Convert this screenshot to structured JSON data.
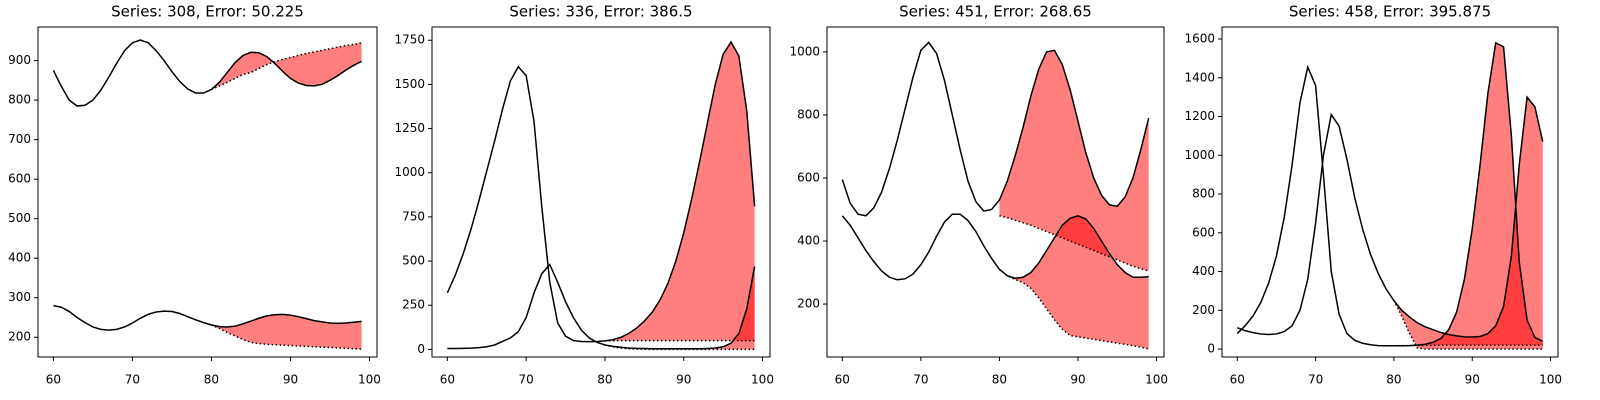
{
  "chart_data": [
    {
      "type": "line",
      "title": "Series: 308, Error: 50.225",
      "x": [
        60,
        61,
        62,
        63,
        64,
        65,
        66,
        67,
        68,
        69,
        70,
        71,
        72,
        73,
        74,
        75,
        76,
        77,
        78,
        79,
        80,
        81,
        82,
        83,
        84,
        85,
        86,
        87,
        88,
        89,
        90,
        91,
        92,
        93,
        94,
        95,
        96,
        97,
        98,
        99
      ],
      "xlim": [
        58.05,
        100.95
      ],
      "xticks": [
        60,
        70,
        80,
        90,
        100
      ],
      "ylim": [
        150,
        985
      ],
      "yticks": [
        200,
        300,
        400,
        500,
        600,
        700,
        800,
        900
      ],
      "fill_color": "#ff0000",
      "series": [
        {
          "color": "#000000",
          "linestyle": "solid",
          "values": [
            875,
            835,
            800,
            785,
            787,
            800,
            825,
            858,
            893,
            925,
            945,
            952,
            945,
            925,
            900,
            872,
            847,
            828,
            818,
            818,
            827,
            845,
            870,
            895,
            913,
            921,
            920,
            910,
            893,
            873,
            855,
            843,
            837,
            836,
            840,
            850,
            862,
            876,
            888,
            898
          ]
        },
        {
          "color": "#000000",
          "linestyle": "solid",
          "values": [
            280,
            276,
            265,
            250,
            237,
            226,
            220,
            218,
            220,
            226,
            236,
            248,
            258,
            264,
            266,
            265,
            260,
            252,
            244,
            237,
            231,
            227,
            226,
            228,
            234,
            241,
            248,
            254,
            257,
            258,
            256,
            252,
            247,
            242,
            239,
            236,
            235,
            236,
            238,
            240
          ]
        },
        {
          "color": "#000000",
          "linestyle": "dotted",
          "values": [
            null,
            null,
            null,
            null,
            null,
            null,
            null,
            null,
            null,
            null,
            null,
            null,
            null,
            null,
            null,
            null,
            null,
            null,
            null,
            null,
            827,
            836,
            845,
            855,
            865,
            870,
            880,
            890,
            897,
            903,
            908,
            913,
            918,
            922,
            926,
            930,
            934,
            938,
            941,
            945
          ]
        },
        {
          "color": "#000000",
          "linestyle": "dotted",
          "values": [
            null,
            null,
            null,
            null,
            null,
            null,
            null,
            null,
            null,
            null,
            null,
            null,
            null,
            null,
            null,
            null,
            null,
            null,
            null,
            null,
            231,
            222,
            212,
            203,
            194,
            187,
            184,
            182,
            181,
            180,
            179,
            178,
            177,
            176,
            175,
            174,
            173,
            172,
            171,
            170
          ]
        }
      ]
    },
    {
      "type": "line",
      "title": "Series: 336, Error: 386.5",
      "x": [
        60,
        61,
        62,
        63,
        64,
        65,
        66,
        67,
        68,
        69,
        70,
        71,
        72,
        73,
        74,
        75,
        76,
        77,
        78,
        79,
        80,
        81,
        82,
        83,
        84,
        85,
        86,
        87,
        88,
        89,
        90,
        91,
        92,
        93,
        94,
        95,
        96,
        97,
        98,
        99
      ],
      "xlim": [
        58.05,
        100.95
      ],
      "xticks": [
        60,
        70,
        80,
        90,
        100
      ],
      "ylim": [
        -43,
        1825
      ],
      "yticks": [
        0,
        250,
        500,
        750,
        1000,
        1250,
        1500,
        1750
      ],
      "fill_color": "#ff0000",
      "series": [
        {
          "color": "#000000",
          "linestyle": "solid",
          "values": [
            320,
            420,
            540,
            680,
            840,
            1010,
            1180,
            1360,
            1520,
            1600,
            1550,
            1290,
            800,
            380,
            150,
            75,
            50,
            45,
            44,
            45,
            48,
            55,
            68,
            90,
            120,
            160,
            210,
            280,
            375,
            500,
            660,
            850,
            1060,
            1280,
            1500,
            1670,
            1740,
            1660,
            1350,
            810
          ]
        },
        {
          "color": "#000000",
          "linestyle": "solid",
          "values": [
            5,
            5,
            6,
            7,
            10,
            15,
            25,
            45,
            65,
            100,
            180,
            320,
            430,
            480,
            380,
            270,
            180,
            110,
            65,
            40,
            25,
            17,
            12,
            8,
            6,
            5,
            4,
            4,
            4,
            4,
            4,
            4,
            4,
            5,
            8,
            15,
            35,
            90,
            230,
            470
          ]
        },
        {
          "color": "#000000",
          "linestyle": "dotted",
          "values": [
            null,
            null,
            null,
            null,
            null,
            null,
            null,
            null,
            null,
            null,
            null,
            null,
            null,
            null,
            null,
            null,
            null,
            null,
            null,
            null,
            48,
            49,
            50,
            50,
            50,
            50,
            50,
            50,
            50,
            50,
            50,
            50,
            50,
            50,
            50,
            50,
            50,
            50,
            50,
            50
          ]
        },
        {
          "color": "#000000",
          "linestyle": "dotted",
          "values": [
            null,
            null,
            null,
            null,
            null,
            null,
            null,
            null,
            null,
            null,
            null,
            null,
            null,
            null,
            null,
            null,
            null,
            null,
            null,
            null,
            25,
            15,
            8,
            4,
            2,
            1,
            0,
            0,
            0,
            0,
            0,
            0,
            0,
            0,
            0,
            0,
            0,
            0,
            0,
            0
          ]
        }
      ]
    },
    {
      "type": "line",
      "title": "Series: 451, Error: 268.65",
      "x": [
        60,
        61,
        62,
        63,
        64,
        65,
        66,
        67,
        68,
        69,
        70,
        71,
        72,
        73,
        74,
        75,
        76,
        77,
        78,
        79,
        80,
        81,
        82,
        83,
        84,
        85,
        86,
        87,
        88,
        89,
        90,
        91,
        92,
        93,
        94,
        95,
        96,
        97,
        98,
        99
      ],
      "xlim": [
        58.05,
        100.95
      ],
      "xticks": [
        60,
        70,
        80,
        90,
        100
      ],
      "ylim": [
        32,
        1079
      ],
      "yticks": [
        200,
        400,
        600,
        800,
        1000
      ],
      "fill_color": "#ff0000",
      "series": [
        {
          "color": "#000000",
          "linestyle": "solid",
          "values": [
            595,
            520,
            485,
            480,
            505,
            555,
            630,
            720,
            820,
            920,
            1005,
            1030,
            995,
            910,
            800,
            690,
            590,
            525,
            495,
            500,
            530,
            590,
            670,
            760,
            860,
            945,
            1000,
            1005,
            960,
            880,
            780,
            680,
            600,
            545,
            515,
            510,
            540,
            600,
            690,
            790
          ]
        },
        {
          "color": "#000000",
          "linestyle": "solid",
          "values": [
            480,
            450,
            410,
            370,
            335,
            305,
            285,
            277,
            280,
            295,
            325,
            365,
            415,
            460,
            485,
            485,
            465,
            430,
            385,
            345,
            310,
            290,
            282,
            285,
            300,
            330,
            370,
            410,
            450,
            472,
            480,
            470,
            440,
            400,
            360,
            325,
            300,
            285,
            285,
            287
          ]
        },
        {
          "color": "#000000",
          "linestyle": "dotted",
          "values": [
            null,
            null,
            null,
            null,
            null,
            null,
            null,
            null,
            null,
            null,
            null,
            null,
            null,
            null,
            null,
            null,
            null,
            null,
            null,
            null,
            480,
            474,
            466,
            458,
            450,
            440,
            430,
            420,
            410,
            400,
            390,
            380,
            370,
            360,
            350,
            340,
            330,
            320,
            312,
            305
          ]
        },
        {
          "color": "#000000",
          "linestyle": "dotted",
          "values": [
            null,
            null,
            null,
            null,
            null,
            null,
            null,
            null,
            null,
            null,
            null,
            null,
            null,
            null,
            null,
            null,
            null,
            null,
            null,
            null,
            310,
            290,
            278,
            268,
            250,
            220,
            185,
            150,
            120,
            100,
            96,
            92,
            88,
            84,
            80,
            76,
            72,
            68,
            63,
            58
          ]
        }
      ]
    },
    {
      "type": "line",
      "title": "Series: 458, Error: 395.875",
      "x": [
        60,
        61,
        62,
        63,
        64,
        65,
        66,
        67,
        68,
        69,
        70,
        71,
        72,
        73,
        74,
        75,
        76,
        77,
        78,
        79,
        80,
        81,
        82,
        83,
        84,
        85,
        86,
        87,
        88,
        89,
        90,
        91,
        92,
        93,
        94,
        95,
        96,
        97,
        98,
        99
      ],
      "xlim": [
        58.05,
        100.95
      ],
      "xticks": [
        60,
        70,
        80,
        90,
        100
      ],
      "ylim": [
        -41,
        1662
      ],
      "yticks": [
        0,
        200,
        400,
        600,
        800,
        1000,
        1200,
        1400,
        1600
      ],
      "fill_color": "#ff0000",
      "series": [
        {
          "color": "#000000",
          "linestyle": "solid",
          "values": [
            80,
            120,
            170,
            240,
            340,
            480,
            680,
            950,
            1270,
            1455,
            1360,
            900,
            400,
            180,
            80,
            45,
            30,
            22,
            18,
            17,
            17,
            17,
            18,
            20,
            25,
            35,
            55,
            100,
            190,
            360,
            620,
            950,
            1320,
            1580,
            1560,
            1100,
            450,
            150,
            60,
            40
          ]
        },
        {
          "color": "#000000",
          "linestyle": "solid",
          "values": [
            110,
            95,
            85,
            78,
            75,
            78,
            90,
            120,
            200,
            360,
            650,
            1000,
            1210,
            1150,
            980,
            780,
            620,
            490,
            390,
            310,
            250,
            200,
            165,
            135,
            115,
            100,
            85,
            75,
            68,
            63,
            62,
            65,
            80,
            120,
            220,
            480,
            950,
            1300,
            1250,
            1070
          ]
        },
        {
          "color": "#000000",
          "linestyle": "dotted",
          "values": [
            null,
            null,
            null,
            null,
            null,
            null,
            null,
            null,
            null,
            null,
            null,
            null,
            null,
            null,
            null,
            null,
            null,
            null,
            null,
            null,
            17,
            18,
            18,
            19,
            19,
            19,
            20,
            20,
            20,
            20,
            20,
            20,
            20,
            20,
            20,
            20,
            20,
            20,
            20,
            20
          ]
        },
        {
          "color": "#000000",
          "linestyle": "dotted",
          "values": [
            null,
            null,
            null,
            null,
            null,
            null,
            null,
            null,
            null,
            null,
            null,
            null,
            null,
            null,
            null,
            null,
            null,
            null,
            null,
            null,
            250,
            170,
            80,
            5,
            0,
            0,
            0,
            0,
            0,
            0,
            0,
            0,
            0,
            0,
            0,
            0,
            0,
            0,
            0,
            0
          ]
        }
      ]
    }
  ]
}
